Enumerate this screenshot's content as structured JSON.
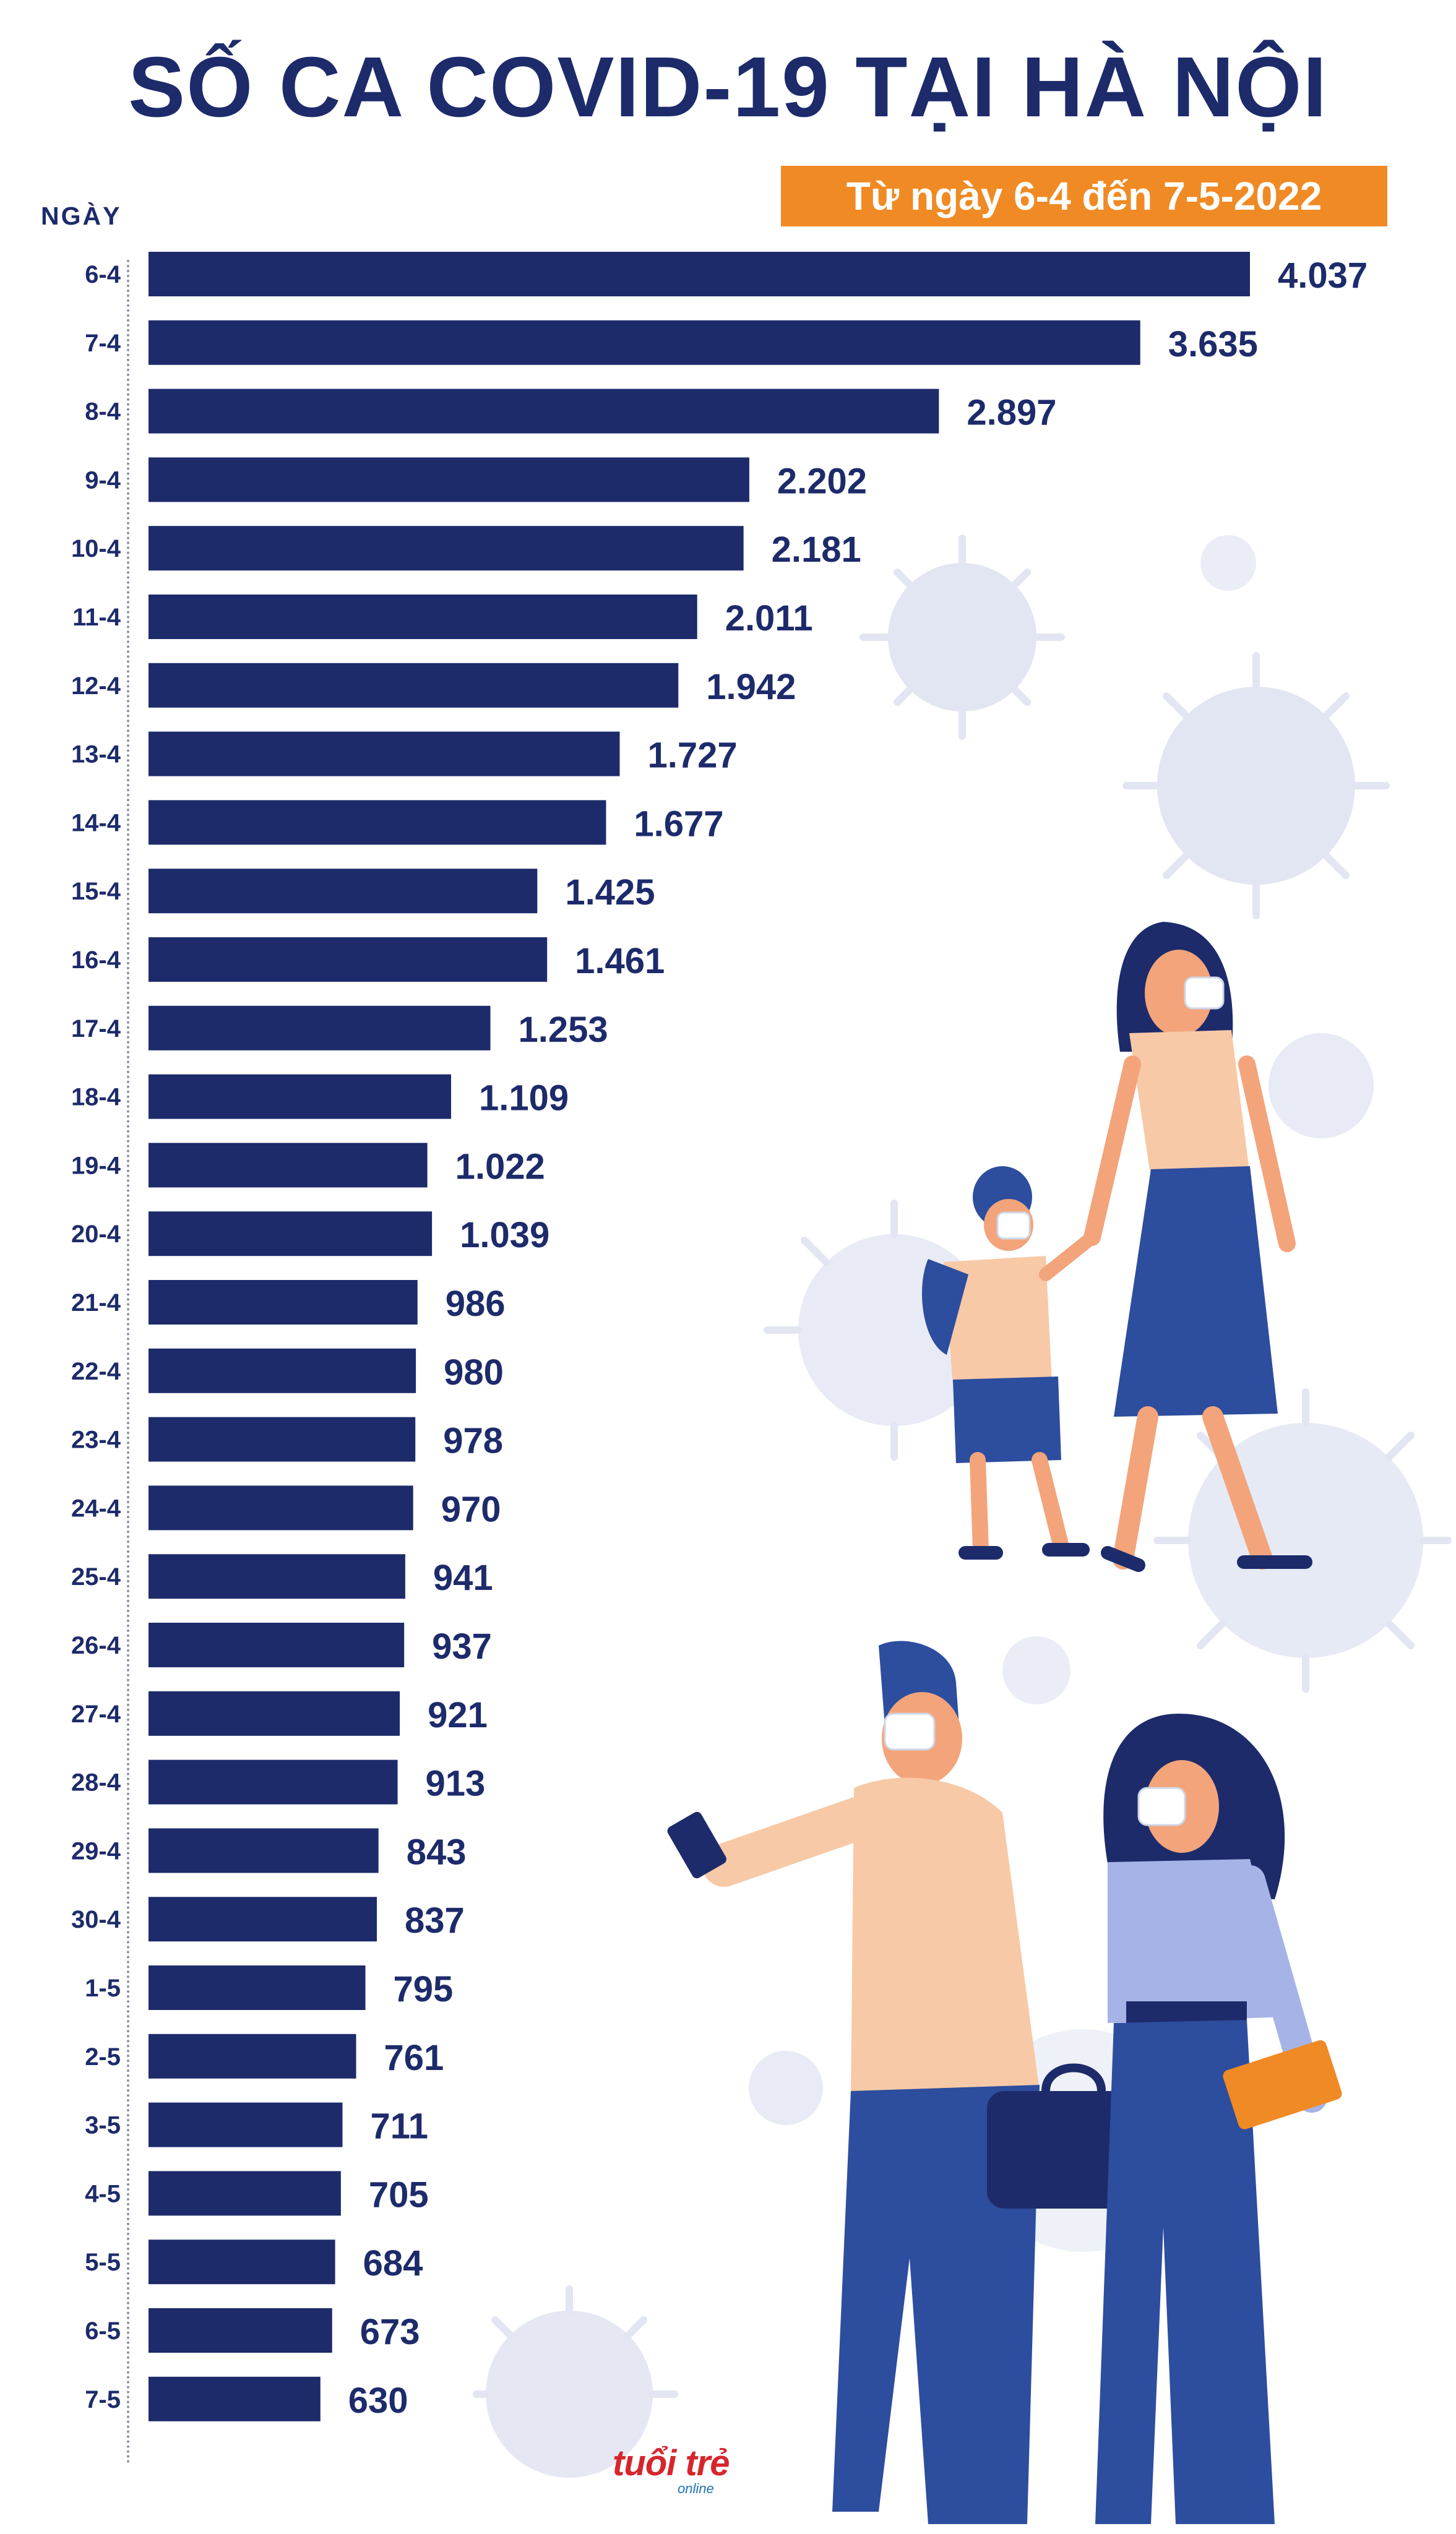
{
  "title": "SỐ CA COVID-19 TẠI HÀ NỘI",
  "subtitle": "Từ ngày 6-4 đến 7-5-2022",
  "logo": {
    "text": "tuổi trẻ",
    "sub": "online"
  },
  "colors": {
    "bar": "#1d2b6b",
    "accent": "#f08a24",
    "text": "#1d2b6b",
    "virus": "#dfe3f0"
  },
  "chart_data": {
    "type": "bar",
    "orientation": "horizontal",
    "ylabel": "NGÀY",
    "xlim": [
      0,
      4037
    ],
    "grid": false,
    "categories": [
      "6-4",
      "7-4",
      "8-4",
      "9-4",
      "10-4",
      "11-4",
      "12-4",
      "13-4",
      "14-4",
      "15-4",
      "16-4",
      "17-4",
      "18-4",
      "19-4",
      "20-4",
      "21-4",
      "22-4",
      "23-4",
      "24-4",
      "25-4",
      "26-4",
      "27-4",
      "28-4",
      "29-4",
      "30-4",
      "1-5",
      "2-5",
      "3-5",
      "4-5",
      "5-5",
      "6-5",
      "7-5"
    ],
    "values": [
      4037,
      3635,
      2897,
      2202,
      2181,
      2011,
      1942,
      1727,
      1677,
      1425,
      1461,
      1253,
      1109,
      1022,
      1039,
      986,
      980,
      978,
      970,
      941,
      937,
      921,
      913,
      843,
      837,
      795,
      761,
      711,
      705,
      684,
      673,
      630
    ],
    "value_labels": [
      "4.037",
      "3.635",
      "2.897",
      "2.202",
      "2.181",
      "2.011",
      "1.942",
      "1.727",
      "1.677",
      "1.425",
      "1.461",
      "1.253",
      "1.109",
      "1.022",
      "1.039",
      "986",
      "980",
      "978",
      "970",
      "941",
      "937",
      "921",
      "913",
      "843",
      "837",
      "795",
      "761",
      "711",
      "705",
      "684",
      "673",
      "630"
    ]
  }
}
